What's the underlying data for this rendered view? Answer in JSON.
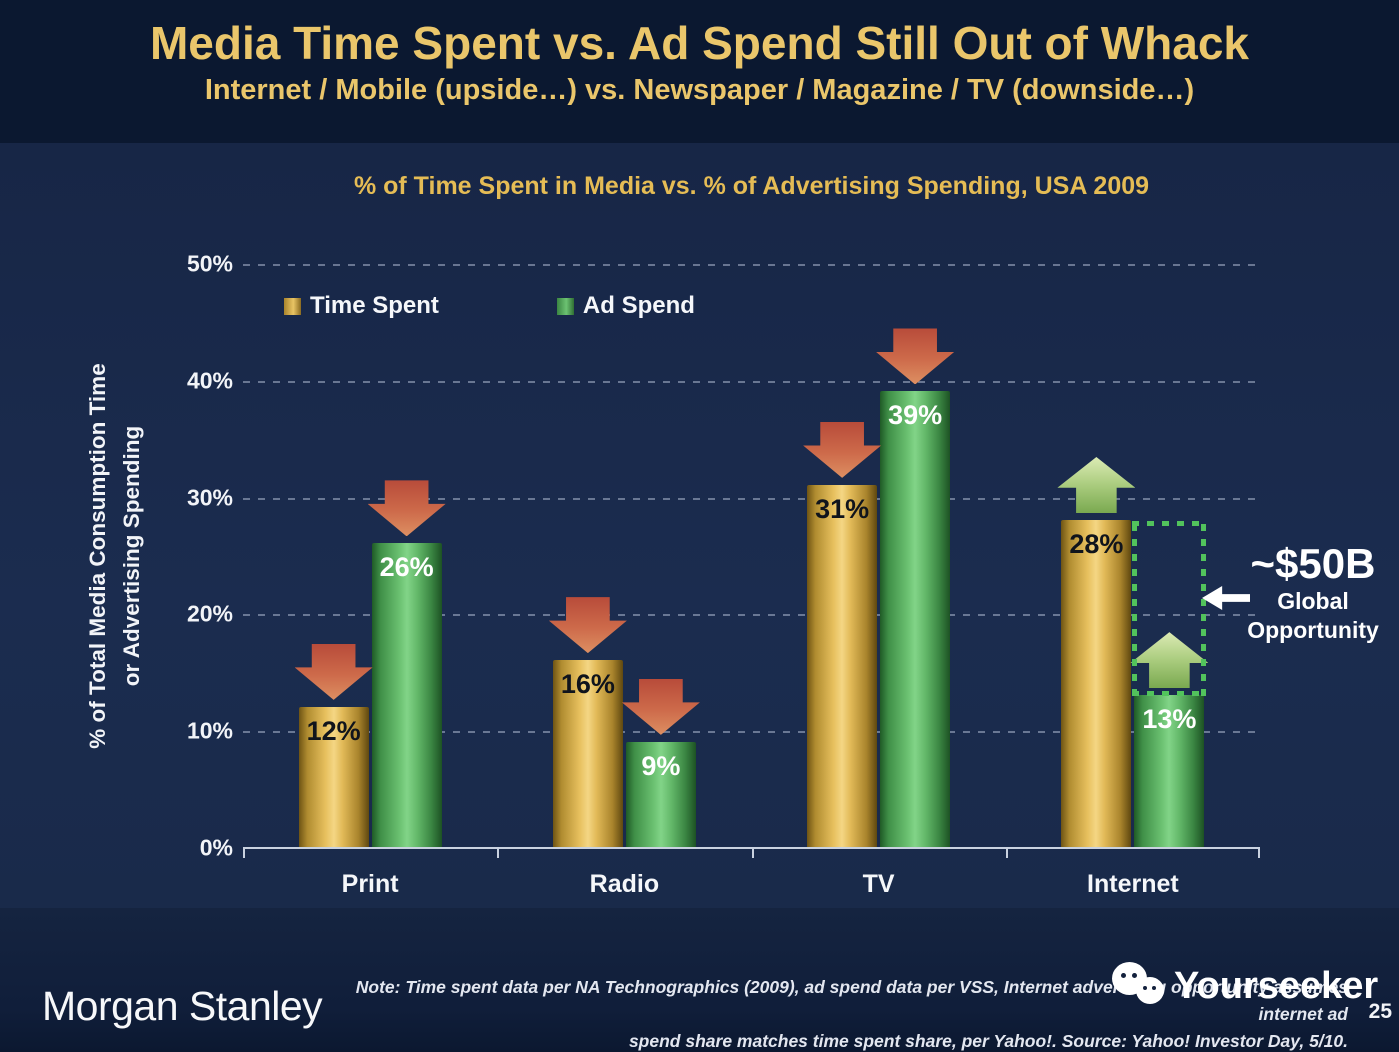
{
  "slide": {
    "title": "Media Time Spent vs. Ad Spend Still Out of Whack",
    "subtitle": "Internet / Mobile (upside…) vs. Newspaper / Magazine / TV (downside…)"
  },
  "chart": {
    "title": "% of Time Spent in Media vs. % of Advertising Spending, USA 2009",
    "y_axis_title_line1": "% of Total Media Consumption Time",
    "y_axis_title_line2": "or Advertising Spending",
    "legend": [
      {
        "label": "Time Spent",
        "color": "#d9ab45"
      },
      {
        "label": "Ad Spend",
        "color": "#4fa65a"
      }
    ]
  },
  "chart_data": {
    "type": "bar",
    "title": "% of Time Spent in Media vs. % of Advertising Spending, USA 2009",
    "ylabel": "% of Total Media Consumption Time or Advertising Spending",
    "ylim": [
      0,
      50
    ],
    "y_ticks": [
      0,
      10,
      20,
      30,
      40,
      50
    ],
    "y_tick_labels": [
      "0%",
      "10%",
      "20%",
      "30%",
      "40%",
      "50%"
    ],
    "grid": "dashed horizontal gridlines at each 10%",
    "legend_position": "top-left inside plot",
    "categories": [
      "Print",
      "Radio",
      "TV",
      "Internet"
    ],
    "series": [
      {
        "name": "Time Spent",
        "values": [
          12,
          16,
          31,
          28
        ],
        "labels": [
          "12%",
          "16%",
          "31%",
          "28%"
        ],
        "color": "#e7c05e",
        "label_color": "#10141c"
      },
      {
        "name": "Ad Spend",
        "values": [
          26,
          9,
          39,
          13
        ],
        "labels": [
          "26%",
          "9%",
          "39%",
          "13%"
        ],
        "color": "#6cc272",
        "label_color": "#ffffff"
      }
    ],
    "trend_arrows": [
      {
        "category": "Print",
        "direction": "down",
        "color": "#cd6a4a"
      },
      {
        "category": "Radio",
        "direction": "down",
        "color": "#cd6a4a"
      },
      {
        "category": "TV",
        "direction": "down",
        "color": "#cd6a4a"
      },
      {
        "category": "Internet",
        "direction": "up",
        "color": "#aacc7e"
      }
    ],
    "annotation": {
      "value": "~$50B",
      "line1": "Global",
      "line2": "Opportunity",
      "box_color": "#52c35c",
      "box_top_percent": 28,
      "box_bottom_percent": 13
    }
  },
  "footer": {
    "brand": "Morgan Stanley",
    "note_line1": "Note: Time spent data per NA Technographics (2009), ad spend data per VSS, Internet advertising opportunity assumes internet ad",
    "note_line2": "spend share matches time spent share, per Yahoo!. Source: Yahoo! Investor Day, 5/10.",
    "watermark": "Yourseeker",
    "page": "25"
  }
}
